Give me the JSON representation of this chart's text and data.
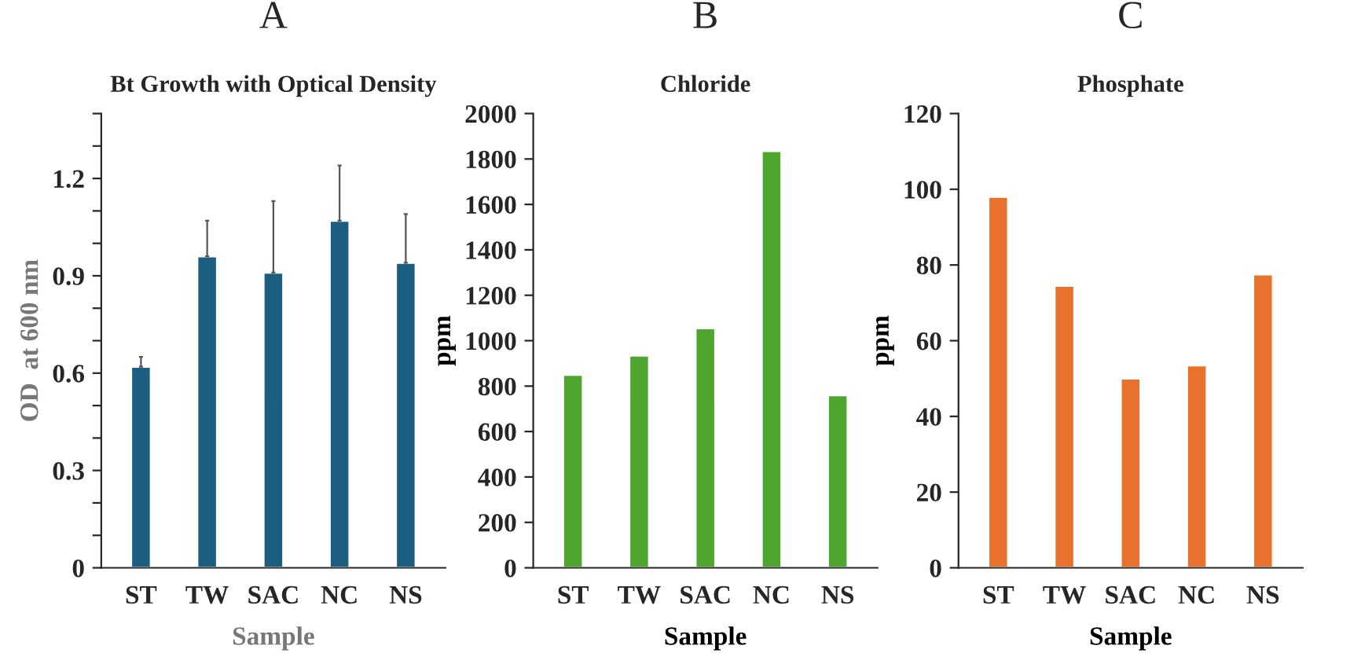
{
  "chart_data": [
    {
      "type": "bar",
      "title": "A",
      "subtitle": "Bt Growth with Optical Density",
      "xlabel": "Sample",
      "ylabel": "OD  at 600 nm",
      "categories": [
        "ST",
        "TW",
        "SAC",
        "NC",
        "NS"
      ],
      "series": [
        {
          "color": "#1b5e80",
          "values": [
            0.62,
            0.96,
            0.91,
            1.07,
            0.94
          ],
          "errors": [
            [
              0.62,
              0.65
            ],
            [
              0.96,
              1.07
            ],
            [
              0.91,
              1.13
            ],
            [
              1.07,
              1.24
            ],
            [
              0.94,
              1.09
            ]
          ]
        }
      ],
      "ylim": [
        0,
        1.4
      ],
      "yticks": [
        0,
        {
          "value": 0.1,
          "label": null
        },
        {
          "value": 0.2,
          "label": null
        },
        0.3,
        {
          "value": 0.4,
          "label": null
        },
        {
          "value": 0.5,
          "label": null
        },
        0.6,
        {
          "value": 0.7,
          "label": null
        },
        {
          "value": 0.8,
          "label": null
        },
        0.9,
        {
          "value": 1.0,
          "label": null
        },
        {
          "value": 1.1,
          "label": null
        },
        1.2,
        {
          "value": 1.3,
          "label": null
        },
        {
          "value": 1.4,
          "label": null
        }
      ],
      "grid": false,
      "legend": false
    },
    {
      "type": "bar",
      "title": "B",
      "subtitle": "Chloride",
      "xlabel": "Sample",
      "ylabel": "ppm",
      "categories": [
        "ST",
        "TW",
        "SAC",
        "NC",
        "NS"
      ],
      "series": [
        {
          "color": "#4fa62f",
          "values": [
            850,
            935,
            1055,
            1835,
            760
          ]
        }
      ],
      "ylim": [
        0,
        2000
      ],
      "yticks": [
        0,
        200,
        400,
        600,
        800,
        1000,
        1200,
        1400,
        1600,
        1800,
        2000
      ],
      "grid": false,
      "legend": false
    },
    {
      "type": "bar",
      "title": "C",
      "subtitle": "Phosphate",
      "xlabel": "Sample",
      "ylabel": "ppm",
      "categories": [
        "ST",
        "TW",
        "SAC",
        "NC",
        "NS"
      ],
      "series": [
        {
          "color": "#e8722d",
          "values": [
            98,
            74.5,
            50,
            53.5,
            77.5
          ]
        }
      ],
      "ylim": [
        0,
        120
      ],
      "yticks": [
        0,
        20,
        40,
        60,
        80,
        100,
        120
      ],
      "grid": false,
      "legend": false
    }
  ]
}
